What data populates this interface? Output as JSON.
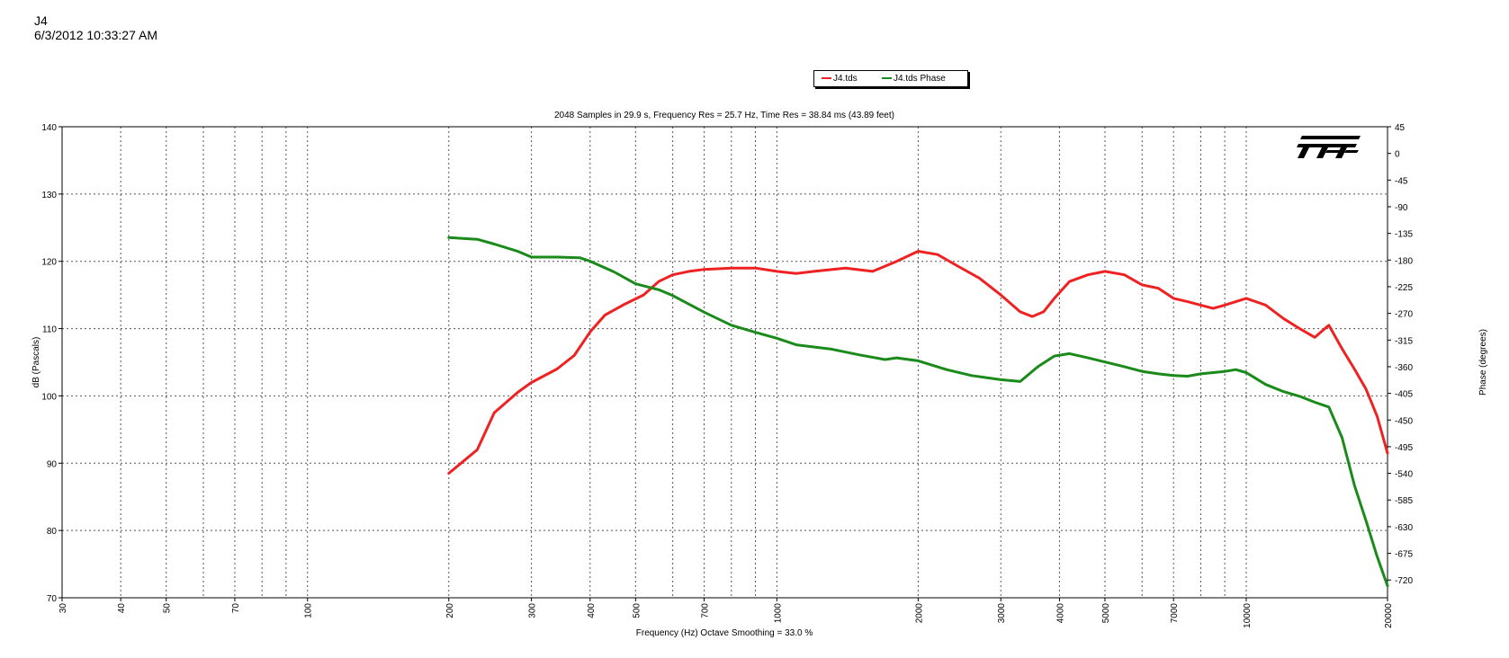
{
  "header": {
    "title": "J4",
    "date": "6/3/2012 10:33:27 AM"
  },
  "legend": {
    "placement": "top-center",
    "items": [
      {
        "name": "J4.tds",
        "color": "#ee2222"
      },
      {
        "name": "J4.tds Phase",
        "color": "#1a8a1a"
      }
    ]
  },
  "logo": {
    "text": "TEF"
  },
  "chart_data": {
    "type": "line",
    "title": "2048 Samples in 29.9 s, Frequency Res = 25.7 Hz, Time Res = 38.84 ms (43.89 feet)",
    "xlabel": "Frequency (Hz) Octave Smoothing = 33.0 %",
    "ylabel": "dB (Pascals)",
    "y2label": "Phase (degrees)",
    "xscale": "log",
    "xlim": [
      30,
      20000
    ],
    "ylim": [
      70,
      140
    ],
    "y2lim": [
      -750,
      45
    ],
    "grid": true,
    "x_tick_labels": [
      "30",
      "40",
      "50",
      "70",
      "100",
      "200",
      "300",
      "400",
      "500",
      "700",
      "1000",
      "2000",
      "3000",
      "4000",
      "5000",
      "7000",
      "10000",
      "20000"
    ],
    "x_minor_grid": [
      60,
      80,
      90,
      600,
      800,
      900,
      6000,
      8000,
      9000
    ],
    "y_ticks": [
      70,
      80,
      90,
      100,
      110,
      120,
      130,
      140
    ],
    "y2_ticks": [
      45,
      0,
      -45,
      -90,
      -135,
      -180,
      -225,
      -270,
      -315,
      -360,
      -405,
      -450,
      -495,
      -540,
      -585,
      -630,
      -675,
      -720
    ],
    "series": [
      {
        "name": "J4.tds",
        "axis": "left",
        "color": "#ee2222",
        "x": [
          200,
          230,
          250,
          280,
          300,
          340,
          370,
          400,
          430,
          470,
          520,
          560,
          600,
          650,
          700,
          800,
          900,
          1000,
          1100,
          1200,
          1400,
          1600,
          1800,
          2000,
          2200,
          2400,
          2700,
          3000,
          3300,
          3500,
          3700,
          3900,
          4200,
          4600,
          5000,
          5500,
          6000,
          6500,
          7000,
          7500,
          8000,
          8500,
          9000,
          10000,
          11000,
          12000,
          13000,
          14000,
          15000,
          16000,
          17000,
          18000,
          19000,
          20000
        ],
        "values": [
          88.5,
          92,
          97.5,
          100.5,
          102,
          104,
          106,
          109.5,
          112,
          113.5,
          115,
          117,
          118,
          118.5,
          118.8,
          119,
          119,
          118.5,
          118.2,
          118.5,
          119,
          118.5,
          120,
          121.5,
          121,
          119.5,
          117.5,
          115,
          112.5,
          111.8,
          112.5,
          114.5,
          117,
          118,
          118.5,
          118,
          116.5,
          116,
          114.5,
          114,
          113.5,
          113,
          113.5,
          114.5,
          113.5,
          111.5,
          110,
          108.7,
          110.5,
          107,
          104,
          101,
          97,
          91.5
        ]
      },
      {
        "name": "J4.tds Phase",
        "axis": "right",
        "color": "#1a8a1a",
        "x": [
          200,
          230,
          250,
          280,
          300,
          340,
          380,
          400,
          450,
          500,
          560,
          600,
          700,
          800,
          900,
          1000,
          1100,
          1300,
          1500,
          1700,
          1800,
          2000,
          2300,
          2600,
          3000,
          3300,
          3600,
          3900,
          4200,
          4600,
          5000,
          5500,
          6000,
          6500,
          7000,
          7500,
          8000,
          8500,
          9000,
          9500,
          10000,
          11000,
          12000,
          13000,
          14000,
          15000,
          16000,
          17000,
          18000,
          19000,
          20000
        ],
        "values": [
          -142,
          -145,
          -153,
          -165,
          -175,
          -175,
          -176,
          -182,
          -200,
          -220,
          -230,
          -240,
          -268,
          -290,
          -302,
          -312,
          -323,
          -330,
          -340,
          -348,
          -345,
          -350,
          -365,
          -375,
          -382,
          -385,
          -360,
          -342,
          -338,
          -345,
          -352,
          -360,
          -368,
          -372,
          -375,
          -376,
          -372,
          -370,
          -368,
          -365,
          -370,
          -390,
          -402,
          -410,
          -420,
          -428,
          -480,
          -560,
          -620,
          -680,
          -730
        ]
      }
    ]
  }
}
